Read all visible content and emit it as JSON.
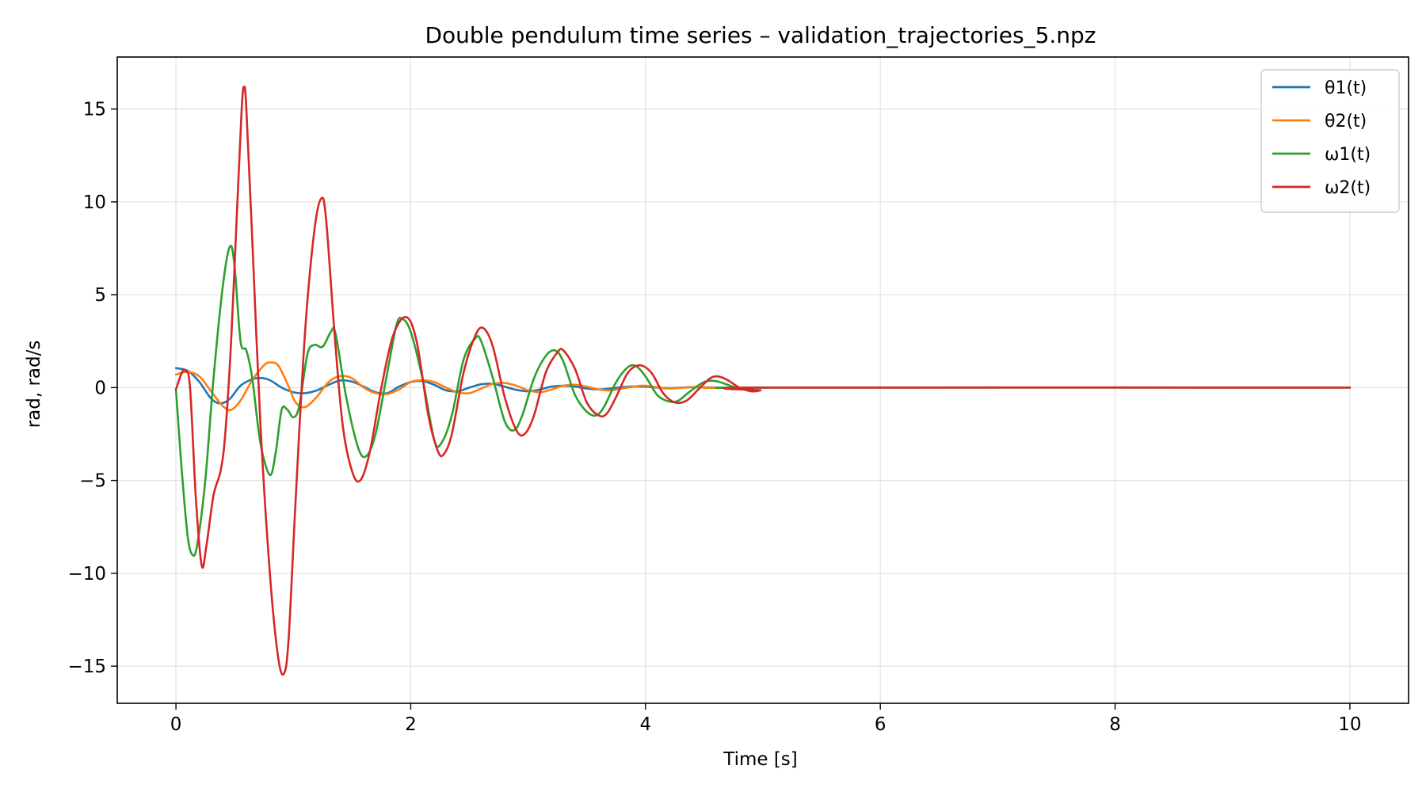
{
  "chart_data": {
    "type": "line",
    "title": "Double pendulum time series – validation_trajectories_5.npz",
    "xlabel": "Time [s]",
    "ylabel": "rad, rad/s",
    "xlim": [
      -0.5,
      10.5
    ],
    "ylim": [
      -17,
      17.8
    ],
    "xticks": [
      0,
      2,
      4,
      6,
      8,
      10
    ],
    "xtick_labels": [
      "0",
      "2",
      "4",
      "6",
      "8",
      "10"
    ],
    "yticks": [
      -15,
      -10,
      -5,
      0,
      5,
      10,
      15
    ],
    "ytick_labels": [
      "−15",
      "−10",
      "−5",
      "0",
      "5",
      "10",
      "15"
    ],
    "grid": true,
    "legend_position": "top-right",
    "series": [
      {
        "name": "θ1(t)",
        "color": "#1f77b4",
        "points": [
          [
            0,
            1.05
          ],
          [
            0.1,
            0.9
          ],
          [
            0.2,
            0.3
          ],
          [
            0.3,
            -0.6
          ],
          [
            0.38,
            -0.85
          ],
          [
            0.46,
            -0.6
          ],
          [
            0.55,
            0.1
          ],
          [
            0.65,
            0.45
          ],
          [
            0.72,
            0.52
          ],
          [
            0.8,
            0.4
          ],
          [
            0.9,
            0.0
          ],
          [
            1.0,
            -0.25
          ],
          [
            1.1,
            -0.3
          ],
          [
            1.2,
            -0.15
          ],
          [
            1.3,
            0.15
          ],
          [
            1.4,
            0.38
          ],
          [
            1.5,
            0.32
          ],
          [
            1.6,
            0.05
          ],
          [
            1.7,
            -0.25
          ],
          [
            1.8,
            -0.3
          ],
          [
            1.9,
            0.05
          ],
          [
            2.0,
            0.3
          ],
          [
            2.1,
            0.35
          ],
          [
            2.2,
            0.15
          ],
          [
            2.3,
            -0.15
          ],
          [
            2.4,
            -0.2
          ],
          [
            2.5,
            0.0
          ],
          [
            2.6,
            0.18
          ],
          [
            2.7,
            0.2
          ],
          [
            2.8,
            0.05
          ],
          [
            2.9,
            -0.12
          ],
          [
            3.0,
            -0.2
          ],
          [
            3.1,
            -0.1
          ],
          [
            3.2,
            0.05
          ],
          [
            3.3,
            0.1
          ],
          [
            3.4,
            0.05
          ],
          [
            3.5,
            -0.05
          ],
          [
            3.6,
            -0.1
          ],
          [
            3.7,
            -0.05
          ],
          [
            3.8,
            0.02
          ],
          [
            3.9,
            0.06
          ],
          [
            4.0,
            0.05
          ],
          [
            4.2,
            -0.03
          ],
          [
            4.4,
            0.02
          ],
          [
            4.7,
            -0.01
          ],
          [
            5.0,
            0
          ],
          [
            10,
            0
          ]
        ]
      },
      {
        "name": "θ2(t)",
        "color": "#ff7f0e",
        "points": [
          [
            0,
            0.7
          ],
          [
            0.1,
            0.85
          ],
          [
            0.2,
            0.6
          ],
          [
            0.3,
            -0.2
          ],
          [
            0.4,
            -1.0
          ],
          [
            0.47,
            -1.2
          ],
          [
            0.55,
            -0.7
          ],
          [
            0.65,
            0.4
          ],
          [
            0.75,
            1.2
          ],
          [
            0.8,
            1.35
          ],
          [
            0.87,
            1.2
          ],
          [
            0.95,
            0.2
          ],
          [
            1.02,
            -0.8
          ],
          [
            1.1,
            -1.05
          ],
          [
            1.2,
            -0.5
          ],
          [
            1.3,
            0.3
          ],
          [
            1.4,
            0.62
          ],
          [
            1.5,
            0.5
          ],
          [
            1.6,
            0.0
          ],
          [
            1.7,
            -0.3
          ],
          [
            1.8,
            -0.35
          ],
          [
            1.9,
            -0.1
          ],
          [
            2.0,
            0.3
          ],
          [
            2.1,
            0.4
          ],
          [
            2.2,
            0.3
          ],
          [
            2.3,
            0.0
          ],
          [
            2.4,
            -0.25
          ],
          [
            2.5,
            -0.3
          ],
          [
            2.6,
            -0.05
          ],
          [
            2.7,
            0.2
          ],
          [
            2.8,
            0.25
          ],
          [
            2.9,
            0.1
          ],
          [
            3.0,
            -0.15
          ],
          [
            3.1,
            -0.25
          ],
          [
            3.2,
            -0.1
          ],
          [
            3.3,
            0.1
          ],
          [
            3.4,
            0.15
          ],
          [
            3.5,
            0.05
          ],
          [
            3.6,
            -0.1
          ],
          [
            3.7,
            -0.15
          ],
          [
            3.8,
            -0.05
          ],
          [
            3.9,
            0.05
          ],
          [
            4.0,
            0.1
          ],
          [
            4.2,
            -0.05
          ],
          [
            4.4,
            0.03
          ],
          [
            4.6,
            -0.02
          ],
          [
            5.0,
            0
          ],
          [
            10,
            0
          ]
        ]
      },
      {
        "name": "ω1(t)",
        "color": "#2ca02c",
        "points": [
          [
            0,
            -0.1
          ],
          [
            0.05,
            -4.5
          ],
          [
            0.1,
            -8.0
          ],
          [
            0.14,
            -9.0
          ],
          [
            0.18,
            -8.5
          ],
          [
            0.25,
            -5.0
          ],
          [
            0.32,
            0.5
          ],
          [
            0.4,
            5.5
          ],
          [
            0.46,
            7.6
          ],
          [
            0.5,
            6.5
          ],
          [
            0.55,
            2.5
          ],
          [
            0.6,
            2.0
          ],
          [
            0.65,
            0.5
          ],
          [
            0.72,
            -3.0
          ],
          [
            0.8,
            -4.7
          ],
          [
            0.85,
            -3.5
          ],
          [
            0.9,
            -1.2
          ],
          [
            0.95,
            -1.2
          ],
          [
            1.0,
            -1.6
          ],
          [
            1.05,
            -1.0
          ],
          [
            1.12,
            1.8
          ],
          [
            1.18,
            2.3
          ],
          [
            1.25,
            2.2
          ],
          [
            1.32,
            3.0
          ],
          [
            1.36,
            2.9
          ],
          [
            1.45,
            -0.5
          ],
          [
            1.55,
            -3.2
          ],
          [
            1.62,
            -3.7
          ],
          [
            1.7,
            -2.5
          ],
          [
            1.8,
            0.8
          ],
          [
            1.88,
            3.4
          ],
          [
            1.93,
            3.7
          ],
          [
            2.0,
            3.0
          ],
          [
            2.1,
            0.5
          ],
          [
            2.2,
            -2.8
          ],
          [
            2.26,
            -3.0
          ],
          [
            2.35,
            -1.5
          ],
          [
            2.45,
            1.5
          ],
          [
            2.55,
            2.65
          ],
          [
            2.6,
            2.5
          ],
          [
            2.7,
            0.5
          ],
          [
            2.8,
            -1.8
          ],
          [
            2.88,
            -2.3
          ],
          [
            2.95,
            -1.5
          ],
          [
            3.05,
            0.5
          ],
          [
            3.15,
            1.7
          ],
          [
            3.23,
            2.0
          ],
          [
            3.3,
            1.4
          ],
          [
            3.4,
            -0.4
          ],
          [
            3.5,
            -1.3
          ],
          [
            3.58,
            -1.5
          ],
          [
            3.65,
            -1.0
          ],
          [
            3.75,
            0.3
          ],
          [
            3.85,
            1.1
          ],
          [
            3.92,
            1.15
          ],
          [
            4.0,
            0.6
          ],
          [
            4.1,
            -0.4
          ],
          [
            4.2,
            -0.75
          ],
          [
            4.28,
            -0.7
          ],
          [
            4.38,
            -0.2
          ],
          [
            4.5,
            0.3
          ],
          [
            4.6,
            0.35
          ],
          [
            4.7,
            0.15
          ],
          [
            4.8,
            -0.05
          ],
          [
            4.9,
            -0.03
          ],
          [
            5.0,
            0
          ],
          [
            10,
            0
          ]
        ]
      },
      {
        "name": "ω2(t)",
        "color": "#d62728",
        "points": [
          [
            0,
            -0.1
          ],
          [
            0.05,
            0.8
          ],
          [
            0.08,
            0.9
          ],
          [
            0.12,
            0.0
          ],
          [
            0.17,
            -6.0
          ],
          [
            0.22,
            -9.6
          ],
          [
            0.26,
            -8.5
          ],
          [
            0.32,
            -5.8
          ],
          [
            0.38,
            -4.5
          ],
          [
            0.42,
            -2.5
          ],
          [
            0.47,
            2.5
          ],
          [
            0.52,
            9.5
          ],
          [
            0.56,
            15.0
          ],
          [
            0.58,
            16.2
          ],
          [
            0.6,
            15.0
          ],
          [
            0.65,
            8.0
          ],
          [
            0.72,
            -2.0
          ],
          [
            0.8,
            -10.0
          ],
          [
            0.87,
            -14.5
          ],
          [
            0.92,
            -15.4
          ],
          [
            0.96,
            -13.5
          ],
          [
            1.02,
            -6.0
          ],
          [
            1.1,
            3.0
          ],
          [
            1.18,
            8.5
          ],
          [
            1.24,
            10.2
          ],
          [
            1.28,
            9.0
          ],
          [
            1.35,
            3.0
          ],
          [
            1.42,
            -2.0
          ],
          [
            1.5,
            -4.5
          ],
          [
            1.57,
            -5.0
          ],
          [
            1.65,
            -3.5
          ],
          [
            1.75,
            0.0
          ],
          [
            1.85,
            2.8
          ],
          [
            1.96,
            3.8
          ],
          [
            2.05,
            2.5
          ],
          [
            2.15,
            -1.5
          ],
          [
            2.23,
            -3.4
          ],
          [
            2.28,
            -3.6
          ],
          [
            2.35,
            -2.5
          ],
          [
            2.45,
            0.8
          ],
          [
            2.55,
            2.8
          ],
          [
            2.62,
            3.2
          ],
          [
            2.7,
            2.2
          ],
          [
            2.8,
            -0.5
          ],
          [
            2.9,
            -2.3
          ],
          [
            2.97,
            -2.5
          ],
          [
            3.05,
            -1.5
          ],
          [
            3.15,
            0.8
          ],
          [
            3.25,
            1.9
          ],
          [
            3.3,
            2.0
          ],
          [
            3.4,
            1.0
          ],
          [
            3.5,
            -0.8
          ],
          [
            3.6,
            -1.5
          ],
          [
            3.67,
            -1.4
          ],
          [
            3.75,
            -0.5
          ],
          [
            3.85,
            0.8
          ],
          [
            3.95,
            1.2
          ],
          [
            4.05,
            0.8
          ],
          [
            4.15,
            -0.3
          ],
          [
            4.25,
            -0.8
          ],
          [
            4.35,
            -0.7
          ],
          [
            4.45,
            -0.1
          ],
          [
            4.55,
            0.5
          ],
          [
            4.62,
            0.6
          ],
          [
            4.7,
            0.4
          ],
          [
            4.8,
            0.0
          ],
          [
            4.9,
            -0.2
          ],
          [
            4.98,
            -0.15
          ],
          [
            5.05,
            0
          ],
          [
            10,
            0
          ]
        ]
      }
    ]
  }
}
